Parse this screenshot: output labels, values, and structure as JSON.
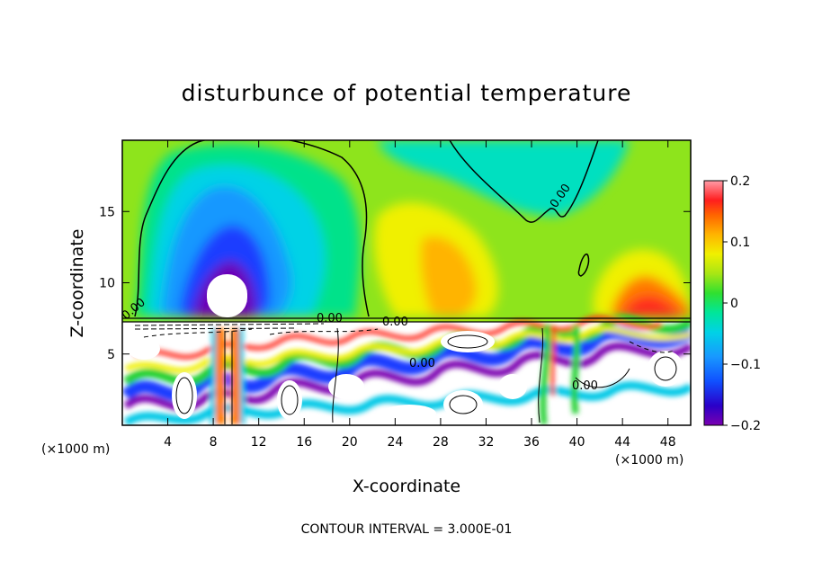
{
  "chart_data": {
    "type": "heatmap",
    "title": "disturbunce of potential temperature",
    "xlabel": "X-coordinate",
    "ylabel": "Z-coordinate",
    "x_unit": "(×1000 m)",
    "x_unit_right": "(×1000 m)",
    "xlim": [
      0,
      50
    ],
    "ylim": [
      0,
      20
    ],
    "x_ticks": [
      4,
      8,
      12,
      16,
      20,
      24,
      28,
      32,
      36,
      40,
      44,
      48
    ],
    "y_ticks": [
      5,
      10,
      15
    ],
    "colorbar": {
      "range": [
        -0.2,
        0.2
      ],
      "ticks": [
        "0.2",
        "0.1",
        "0",
        "−0.1",
        "−0.2"
      ],
      "tick_values": [
        0.2,
        0.1,
        0,
        -0.1,
        -0.2
      ]
    },
    "contour_labels": [
      "0.00",
      "0.00",
      "0.00",
      "0.00",
      "0.00",
      "0.00"
    ],
    "contour_interval_text": "CONTOUR INTERVAL = 3.000E-01"
  }
}
